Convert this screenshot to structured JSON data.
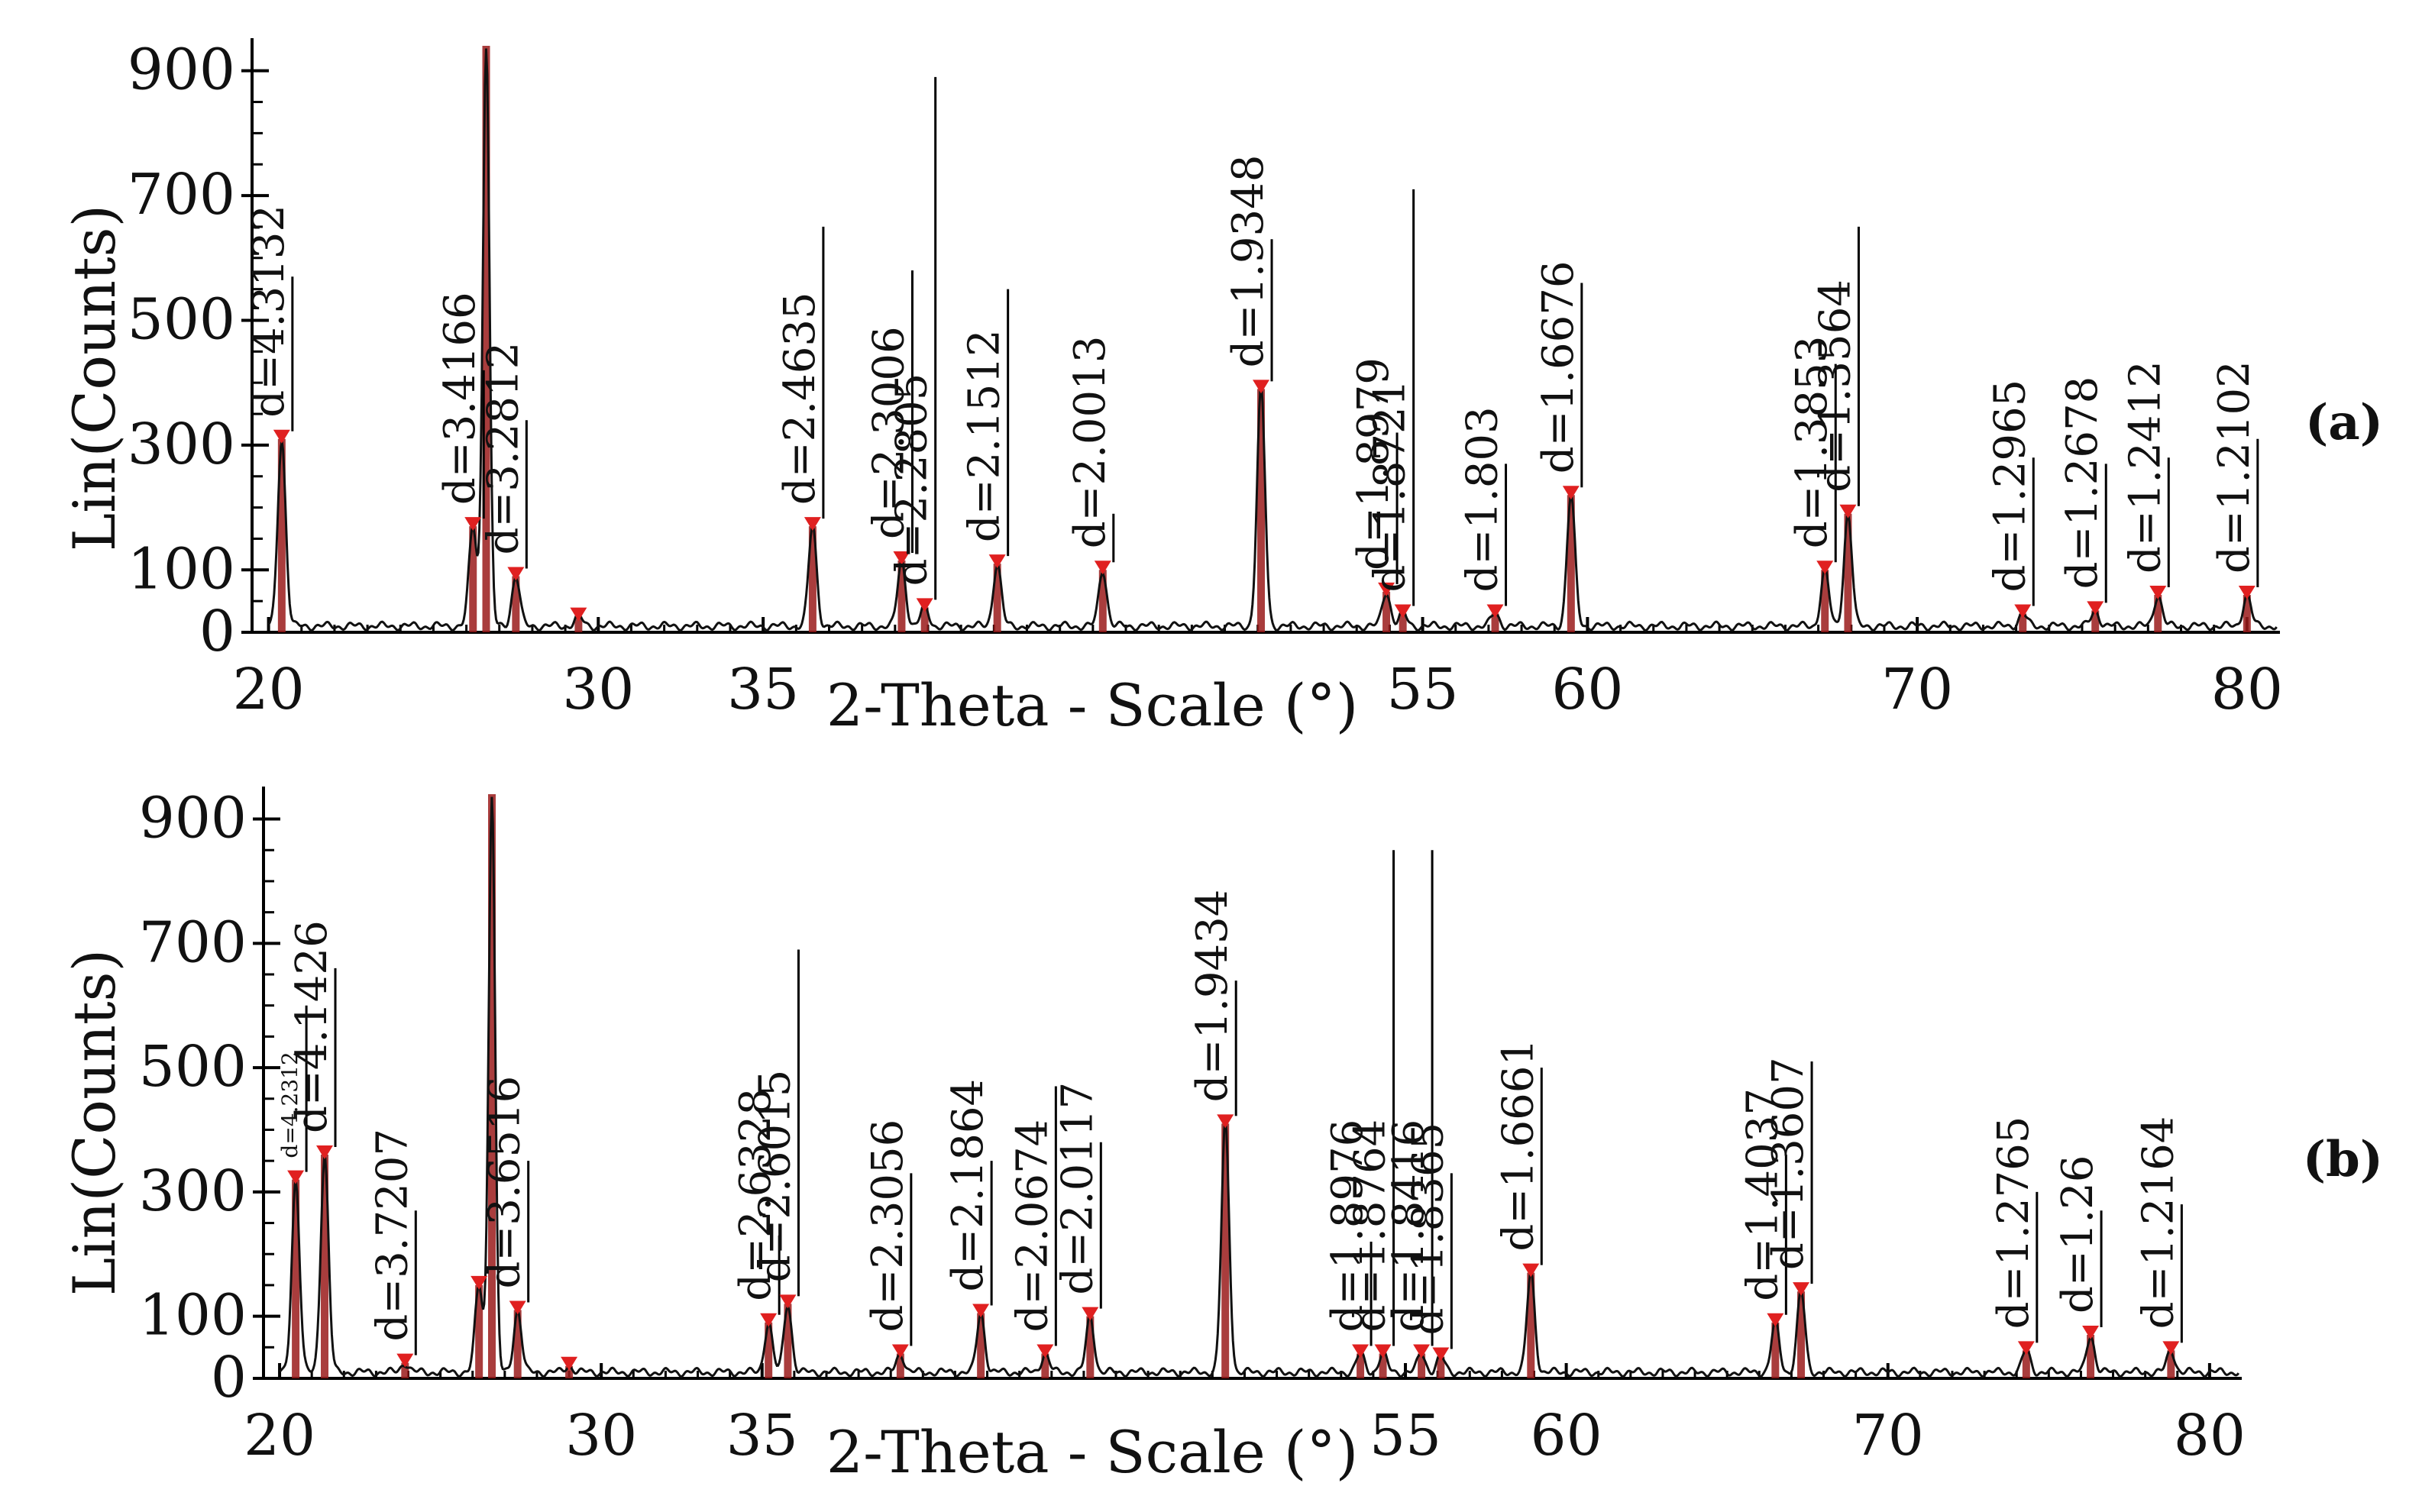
{
  "figure": {
    "x_axis_title": "2-Theta - Scale (°)",
    "y_axis_title": "Lin(Counts)"
  },
  "chart_data": [
    {
      "type": "line",
      "panel_label": "(a)",
      "xlabel": "2-Theta - Scale (°)",
      "ylabel": "Lin(Counts)",
      "xlim": [
        19.5,
        81
      ],
      "ylim": [
        0,
        940
      ],
      "x_ticks": [
        {
          "value": 20,
          "label": "20"
        },
        {
          "value": 30,
          "label": "30"
        },
        {
          "value": 35,
          "label": "35"
        },
        {
          "value": 55,
          "label": "55"
        },
        {
          "value": 60,
          "label": "60"
        },
        {
          "value": 70,
          "label": "70"
        },
        {
          "value": 80,
          "label": "80"
        }
      ],
      "y_ticks": [
        {
          "value": 0,
          "label": "0"
        },
        {
          "value": 100,
          "label": "100"
        },
        {
          "value": 300,
          "label": "300"
        },
        {
          "value": 500,
          "label": "500"
        },
        {
          "value": 700,
          "label": "700"
        },
        {
          "value": 900,
          "label": "900"
        }
      ],
      "background": 10,
      "peaks": [
        {
          "x": 20.4,
          "y": 310,
          "label": "d=4.3132",
          "line_top": 570
        },
        {
          "x": 26.2,
          "y": 170,
          "label": "d=3.4166",
          "line_top": 420
        },
        {
          "x": 26.6,
          "y": 940,
          "label": "",
          "line_top": 940
        },
        {
          "x": 27.5,
          "y": 90,
          "label": "d=3.2812",
          "line_top": 340
        },
        {
          "x": 29.4,
          "y": 25,
          "label": "",
          "line_top": 25
        },
        {
          "x": 36.5,
          "y": 170,
          "label": "d=2.4635",
          "line_top": 650
        },
        {
          "x": 39.2,
          "y": 115,
          "label": "d=2.3006",
          "line_top": 580
        },
        {
          "x": 39.9,
          "y": 40,
          "label": "d=2.2805",
          "line_top": 890
        },
        {
          "x": 42.1,
          "y": 110,
          "label": "d=2.1512",
          "line_top": 550
        },
        {
          "x": 45.3,
          "y": 100,
          "label": "d=2.0013",
          "line_top": 190
        },
        {
          "x": 50.1,
          "y": 390,
          "label": "d=1.9348",
          "line_top": 630
        },
        {
          "x": 53.9,
          "y": 65,
          "label": "d=1.8979",
          "line_top": 320
        },
        {
          "x": 54.4,
          "y": 30,
          "label": "d=1.8721",
          "line_top": 710
        },
        {
          "x": 57.2,
          "y": 30,
          "label": "d=1.803",
          "line_top": 270
        },
        {
          "x": 59.5,
          "y": 220,
          "label": "d=1.6676",
          "line_top": 560
        },
        {
          "x": 67.2,
          "y": 100,
          "label": "d=1.3853",
          "line_top": 430
        },
        {
          "x": 67.9,
          "y": 190,
          "label": "d=1.3564",
          "line_top": 650
        },
        {
          "x": 73.2,
          "y": 30,
          "label": "d=1.2965",
          "line_top": 280
        },
        {
          "x": 75.4,
          "y": 35,
          "label": "d=1.2678",
          "line_top": 270
        },
        {
          "x": 77.3,
          "y": 60,
          "label": "d=1.2412",
          "line_top": 280
        },
        {
          "x": 80.0,
          "y": 60,
          "label": "d=1.2102",
          "line_top": 310
        }
      ]
    },
    {
      "type": "line",
      "panel_label": "(b)",
      "xlabel": "2-Theta - Scale (°)",
      "ylabel": "Lin(Counts)",
      "xlim": [
        19.5,
        81
      ],
      "ylim": [
        0,
        940
      ],
      "x_ticks": [
        {
          "value": 20,
          "label": "20"
        },
        {
          "value": 30,
          "label": "30"
        },
        {
          "value": 35,
          "label": "35"
        },
        {
          "value": 55,
          "label": "55"
        },
        {
          "value": 60,
          "label": "60"
        },
        {
          "value": 70,
          "label": "70"
        },
        {
          "value": 80,
          "label": "80"
        }
      ],
      "y_ticks": [
        {
          "value": 0,
          "label": "0"
        },
        {
          "value": 100,
          "label": "100"
        },
        {
          "value": 300,
          "label": "300"
        },
        {
          "value": 500,
          "label": "500"
        },
        {
          "value": 700,
          "label": "700"
        },
        {
          "value": 900,
          "label": "900"
        }
      ],
      "background": 10,
      "peaks": [
        {
          "x": 20.5,
          "y": 320,
          "label": "d=4.2312",
          "line_top": 600,
          "small": true
        },
        {
          "x": 21.4,
          "y": 360,
          "label": "d=4.1426",
          "line_top": 660
        },
        {
          "x": 23.9,
          "y": 25,
          "label": "d=3.7207",
          "line_top": 270
        },
        {
          "x": 26.2,
          "y": 150,
          "label": "",
          "line_top": 150
        },
        {
          "x": 26.6,
          "y": 940,
          "label": "",
          "line_top": 940
        },
        {
          "x": 27.4,
          "y": 110,
          "label": "d=3.6516",
          "line_top": 350
        },
        {
          "x": 29.0,
          "y": 20,
          "label": "",
          "line_top": 20
        },
        {
          "x": 35.2,
          "y": 90,
          "label": "d=2.6328",
          "line_top": 230
        },
        {
          "x": 35.8,
          "y": 120,
          "label": "d=2.6015",
          "line_top": 690
        },
        {
          "x": 39.3,
          "y": 40,
          "label": "d=2.3056",
          "line_top": 330
        },
        {
          "x": 41.8,
          "y": 105,
          "label": "d=2.1864",
          "line_top": 350
        },
        {
          "x": 43.8,
          "y": 40,
          "label": "d=2.0674",
          "line_top": 470
        },
        {
          "x": 45.2,
          "y": 100,
          "label": "d=2.0117",
          "line_top": 380
        },
        {
          "x": 49.4,
          "y": 410,
          "label": "d=1.9434",
          "line_top": 640
        },
        {
          "x": 53.6,
          "y": 40,
          "label": "d=1.8976",
          "line_top": 220
        },
        {
          "x": 54.3,
          "y": 40,
          "label": "d=1.8764",
          "line_top": 850
        },
        {
          "x": 55.5,
          "y": 40,
          "label": "d=1.8416",
          "line_top": 850
        },
        {
          "x": 56.1,
          "y": 35,
          "label": "d=1.8365",
          "line_top": 330
        },
        {
          "x": 58.9,
          "y": 170,
          "label": "d=1.6661",
          "line_top": 500
        },
        {
          "x": 66.5,
          "y": 90,
          "label": "d=1.4037",
          "line_top": 360
        },
        {
          "x": 67.3,
          "y": 140,
          "label": "d=1.3607",
          "line_top": 510
        },
        {
          "x": 74.3,
          "y": 45,
          "label": "d=1.2765",
          "line_top": 300
        },
        {
          "x": 76.3,
          "y": 70,
          "label": "d=1.26",
          "line_top": 270
        },
        {
          "x": 78.8,
          "y": 45,
          "label": "d=1.2164",
          "line_top": 280
        }
      ]
    }
  ]
}
